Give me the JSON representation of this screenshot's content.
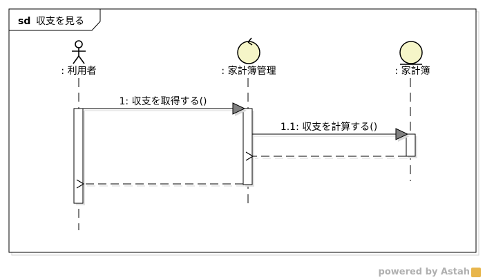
{
  "diagram": {
    "kind": "sd",
    "title": "収支を見る",
    "lifelines": [
      {
        "id": "user",
        "label": ": 利用者",
        "stereotype": "actor"
      },
      {
        "id": "ctrl",
        "label": ": 家計簿管理",
        "stereotype": "control"
      },
      {
        "id": "entity",
        "label": ": 家計簿",
        "stereotype": "entity"
      }
    ],
    "messages": [
      {
        "label": "1: 収支を取得する()",
        "type": "sync"
      },
      {
        "label": "1.1: 収支を計算する()",
        "type": "sync"
      }
    ]
  },
  "footer": {
    "text": "powered by Astah"
  },
  "colors": {
    "line": "#000000",
    "shadow": "#d8d8d8",
    "arrowhead": "#808080",
    "activation": "#ffffff"
  }
}
